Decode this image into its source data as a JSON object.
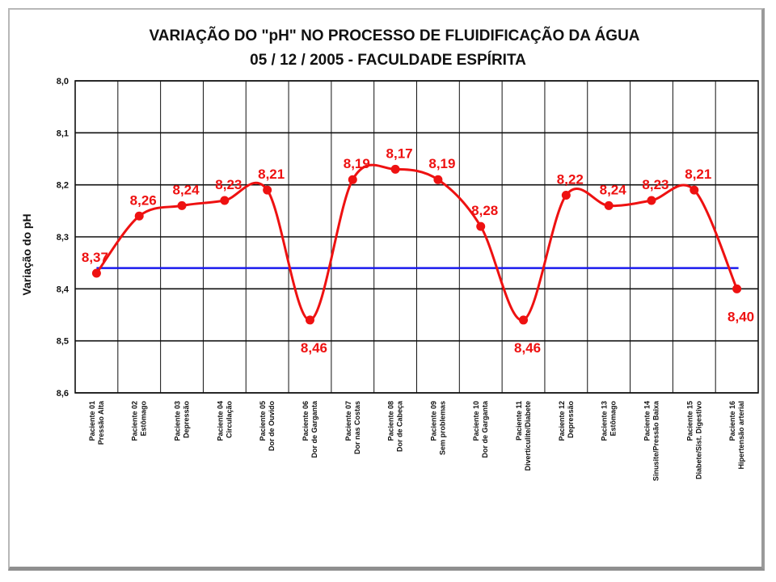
{
  "chart_data": {
    "type": "line",
    "title": "VARIAÇÃO DO \"pH\"  NO PROCESSO DE FLUIDIFICAÇÃO DA ÁGUA",
    "subtitle": "05 / 12 / 2005  -  FACULDADE ESPÍRITA",
    "xlabel": "",
    "ylabel": "Variação do pH",
    "ylim": [
      8.0,
      8.6
    ],
    "y_inverted": true,
    "yticks": [
      "8,0",
      "8,1",
      "8,2",
      "8,3",
      "8,4",
      "8,5",
      "8,6"
    ],
    "grid": true,
    "categories": [
      [
        "Paciente 01",
        "Pressão Alta"
      ],
      [
        "Paciente 02",
        "Estômago"
      ],
      [
        "Paciente 03",
        "Depressão"
      ],
      [
        "Paciente 04",
        "Circulação"
      ],
      [
        "Paciente 05",
        "Dor de Ouvido"
      ],
      [
        "Paciente 06",
        "Dor de Garganta"
      ],
      [
        "Paciente 07",
        "Dor nas Costas"
      ],
      [
        "Paciente 08",
        "Dor de Cabeça"
      ],
      [
        "Paciente 09",
        "Sem problemas"
      ],
      [
        "Paciente 10",
        "Dor de Garganta"
      ],
      [
        "Paciente 11",
        "Diverticulite/Diabete"
      ],
      [
        "Paciente 12",
        "Depressão"
      ],
      [
        "Paciente 13",
        "Estômago"
      ],
      [
        "Paciente 14",
        "Sinusite/Pressão Baixa"
      ],
      [
        "Paciente 15",
        "Diabete/Sist. Digestivo"
      ],
      [
        "Paciente 16",
        "Hipertensão arterial"
      ]
    ],
    "series": [
      {
        "color": "#ee1111",
        "values": [
          8.37,
          8.26,
          8.24,
          8.23,
          8.21,
          8.46,
          8.19,
          8.17,
          8.19,
          8.28,
          8.46,
          8.22,
          8.24,
          8.23,
          8.21,
          8.4
        ],
        "labels": [
          "8,37",
          "8,26",
          "8,24",
          "8,23",
          "8,21",
          "8,46",
          "8,19",
          "8,17",
          "8,19",
          "8,28",
          "8,46",
          "8,22",
          "8,24",
          "8,23",
          "8,21",
          "8,40"
        ]
      }
    ],
    "reference_line": {
      "y": 8.36,
      "color": "#1a1aee"
    }
  }
}
